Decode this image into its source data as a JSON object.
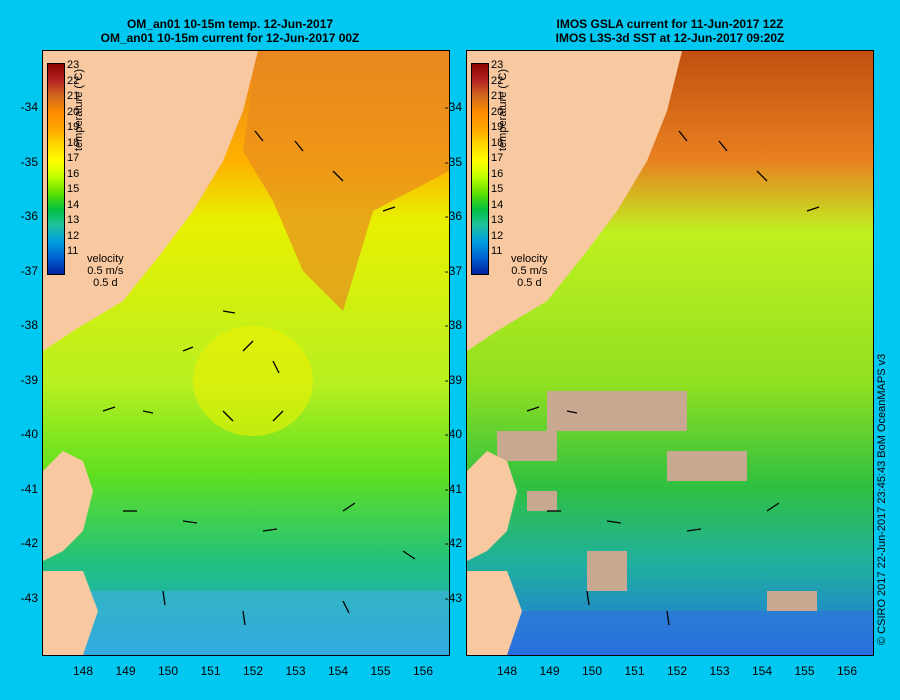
{
  "left_panel": {
    "title_line1": "OM_an01 10-15m temp. 12-Jun-2017",
    "title_line2": "OM_an01 10-15m current for 12-Jun-2017 00Z"
  },
  "right_panel": {
    "title_line1": "IMOS GSLA current for 11-Jun-2017 12Z",
    "title_line2": "IMOS L3S-3d SST at 12-Jun-2017 09:20Z"
  },
  "lat_ticks": [
    "-34",
    "-35",
    "-36",
    "-37",
    "-38",
    "-39",
    "-40",
    "-41",
    "-42",
    "-43"
  ],
  "lon_ticks": [
    "148",
    "149",
    "150",
    "151",
    "152",
    "153",
    "154",
    "155",
    "156"
  ],
  "colorbar": {
    "labels": [
      "23",
      "22",
      "21",
      "20",
      "19",
      "18",
      "17",
      "16",
      "15",
      "14",
      "13",
      "12",
      "11"
    ],
    "title": "temperature (°C)",
    "colors": [
      "#8b0000",
      "#b22222",
      "#d2691e",
      "#ff8c00",
      "#ffa500",
      "#ffd700",
      "#ffff00",
      "#c0ff00",
      "#60e000",
      "#00c040",
      "#20c0a0",
      "#00a0e0",
      "#0060d0",
      "#0020a0"
    ]
  },
  "velocity_legend": {
    "title": "velocity",
    "scale": "0.5 m/s",
    "duration": "0.5 d"
  },
  "credit": "© CSIRO 2017   22-Jun-2017 23:45:43 BoM OceanMAPS v3"
}
